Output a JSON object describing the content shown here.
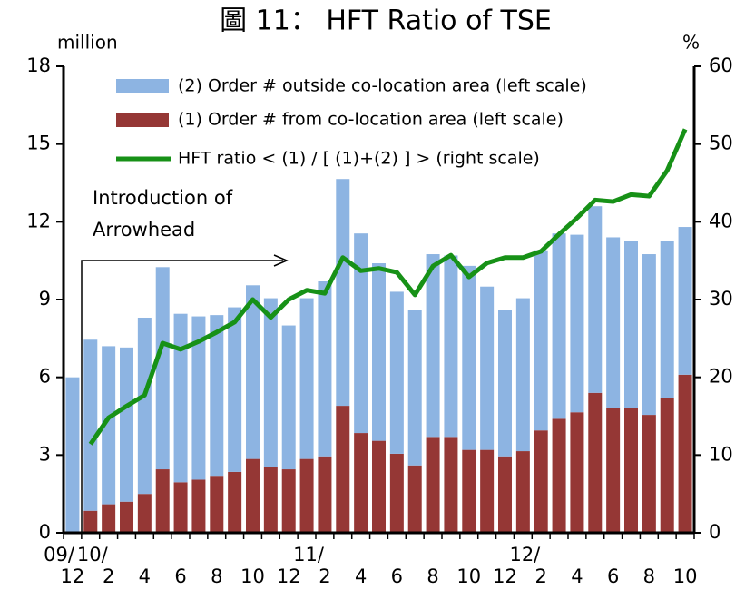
{
  "chart_data": {
    "type": "bar-line",
    "title": "圖 11： HFT Ratio of TSE",
    "y_unit": "million",
    "y2_unit": "%",
    "annotation": [
      "Introduction of",
      "Arrowhead"
    ],
    "categories": [
      "12",
      null,
      "2",
      null,
      "4",
      null,
      "6",
      null,
      "8",
      null,
      "10",
      null,
      "12",
      null,
      "2",
      null,
      "4",
      null,
      "6",
      null,
      "8",
      null,
      "10",
      null,
      "12",
      null,
      "2",
      null,
      "4",
      null,
      "6",
      null,
      "8",
      null,
      "10"
    ],
    "category_groups": [
      "09/",
      "10/",
      null,
      null,
      null,
      null,
      null,
      null,
      null,
      null,
      null,
      null,
      null,
      "11/",
      null,
      null,
      null,
      null,
      null,
      null,
      null,
      null,
      null,
      null,
      null,
      "12/",
      null,
      null,
      null,
      null,
      null,
      null,
      null,
      null,
      null
    ],
    "series": [
      {
        "name": "(1) Order # from co-location area (left scale)",
        "color": "#953735",
        "kind": "bar",
        "values": [
          0,
          0.85,
          1.1,
          1.2,
          1.5,
          2.45,
          1.95,
          2.05,
          2.2,
          2.35,
          2.85,
          2.55,
          2.45,
          2.85,
          2.95,
          4.9,
          3.85,
          3.55,
          3.05,
          2.6,
          3.7,
          3.7,
          3.2,
          3.2,
          2.95,
          3.15,
          3.95,
          4.4,
          4.65,
          5.4,
          4.8,
          4.8,
          4.55,
          5.2,
          6.1
        ]
      },
      {
        "name": "(2) Order # outside co-location area (left scale)",
        "color": "#8db4e2",
        "kind": "bar",
        "values": [
          6.0,
          6.6,
          6.1,
          5.95,
          6.8,
          7.8,
          6.5,
          6.3,
          6.2,
          6.35,
          6.7,
          6.5,
          5.55,
          6.2,
          6.75,
          8.75,
          7.7,
          6.85,
          6.25,
          6.0,
          7.05,
          7.0,
          7.1,
          6.3,
          5.65,
          5.9,
          6.95,
          7.15,
          6.85,
          7.2,
          6.6,
          6.45,
          6.2,
          6.05,
          5.7
        ]
      },
      {
        "name": "HFT ratio < (1) / [ (1)+(2) ] > (right scale)",
        "color": "#179117",
        "kind": "line",
        "axis": "y2",
        "values": [
          null,
          11.4,
          14.8,
          16.3,
          17.7,
          24.4,
          23.6,
          24.6,
          25.8,
          27.1,
          30.0,
          27.7,
          30.0,
          31.2,
          30.8,
          35.4,
          33.7,
          34.0,
          33.5,
          30.6,
          34.3,
          35.7,
          32.9,
          34.7,
          35.4,
          35.4,
          36.2,
          38.4,
          40.5,
          42.8,
          42.6,
          43.5,
          43.3,
          46.6,
          51.9
        ]
      }
    ],
    "legend_order": [
      1,
      0,
      2
    ],
    "ylim": [
      0,
      18
    ],
    "yticks": [
      0,
      3,
      6,
      9,
      12,
      15,
      18
    ],
    "y2lim": [
      0,
      60
    ],
    "y2ticks": [
      0,
      10,
      20,
      30,
      40,
      50,
      60
    ]
  }
}
